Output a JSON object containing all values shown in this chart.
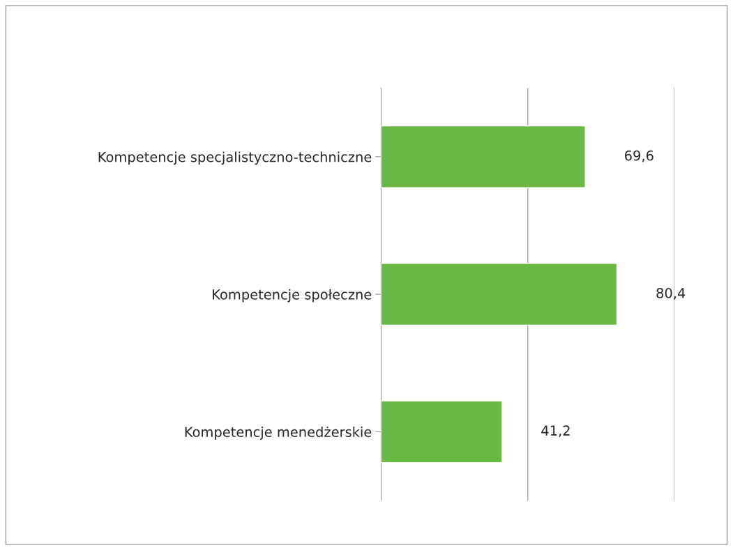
{
  "chart_data": {
    "type": "bar",
    "orientation": "horizontal",
    "categories": [
      "Kompetencje specjalistyczno-techniczne",
      "Kompetencje społeczne",
      "Kompetencje menedżerskie"
    ],
    "values": [
      69.6,
      80.4,
      41.2
    ],
    "value_labels": [
      "69,6",
      "80,4",
      "41,2"
    ],
    "color": "#6ab944",
    "xlim": [
      0,
      100
    ],
    "xticks": [
      {
        "value": 0,
        "label": null
      },
      {
        "value": 50,
        "label": null
      },
      {
        "value": 100,
        "label": null
      }
    ],
    "grid": "x",
    "tick_labels": "y",
    "legend": false
  }
}
